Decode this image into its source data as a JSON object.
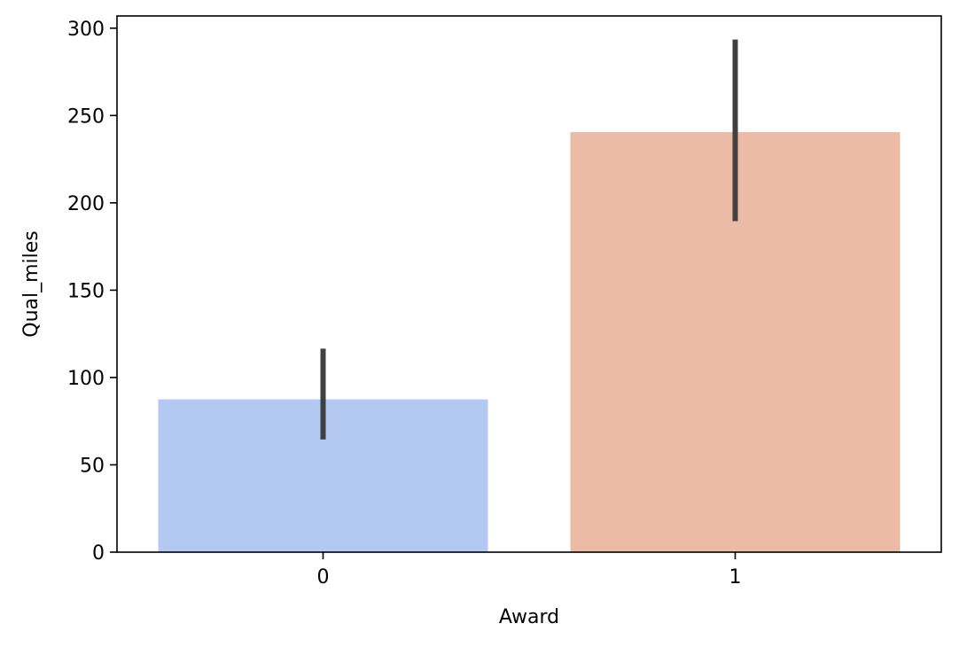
{
  "chart_data": {
    "type": "bar",
    "title": "",
    "xlabel": "Award",
    "ylabel": "Qual_miles",
    "categories": [
      "0",
      "1"
    ],
    "values": [
      87.5,
      240.5
    ],
    "error_bars": [
      {
        "low": 64.5,
        "high": 116.5
      },
      {
        "low": 189.5,
        "high": 293.5
      }
    ],
    "ylim": [
      0,
      307
    ],
    "yticks": [
      0,
      50,
      100,
      150,
      200,
      250,
      300
    ],
    "grid": false,
    "legend": "none",
    "colors": {
      "bars": [
        "#b3c9f2",
        "#ebbba6"
      ],
      "error_bar": "#404040",
      "axes": "#000000"
    }
  }
}
